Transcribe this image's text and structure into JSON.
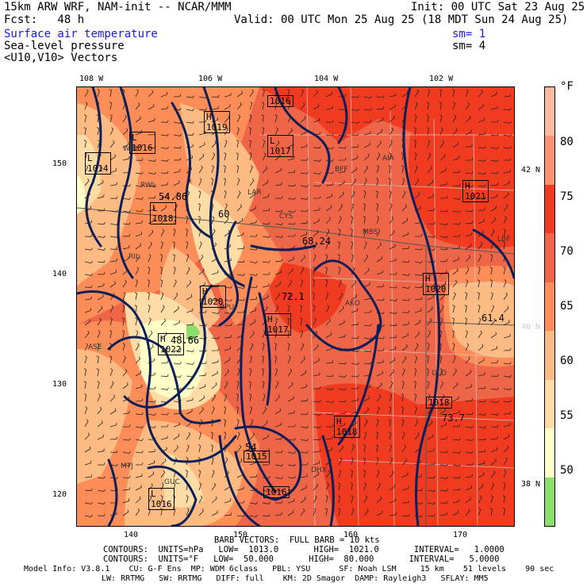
{
  "header": {
    "line1_left": "15km ARW WRF, NAM-init -- NCAR/MMM",
    "line1_right": "Init: 00 UTC Sat 23 Aug 25",
    "line2_left": "Fcst:   48 h",
    "line2_right": "Valid: 00 UTC Mon 25 Aug 25 (18 MDT Sun 24 Aug 25)",
    "field1": "Surface air temperature",
    "field1_sm": "sm= 1",
    "field2": "Sea-level pressure",
    "field2_sm": "sm= 4",
    "field3": "<U10,V10> Vectors"
  },
  "map": {
    "top_lon_labels": [
      "108 W",
      "106 W",
      "104 W",
      "102 W"
    ],
    "left_y_labels": [
      "150",
      "140",
      "130",
      "120"
    ],
    "bottom_x_labels": [
      "140",
      "150",
      "160",
      "170"
    ],
    "right_lat_labels": [
      "42 N",
      "40 N",
      "38 N"
    ],
    "pressure_highs": [
      {
        "letter": "H",
        "value": "1019"
      },
      {
        "letter": "H",
        "value": "1020"
      },
      {
        "letter": "H",
        "value": "1022"
      },
      {
        "letter": "H",
        "value": "1017"
      },
      {
        "letter": "H",
        "value": "1018"
      },
      {
        "letter": "H",
        "value": "1021"
      },
      {
        "letter": "H",
        "value": "1020"
      }
    ],
    "pressure_lows": [
      {
        "letter": "L",
        "value": "1016"
      },
      {
        "letter": "L",
        "value": "1014"
      },
      {
        "letter": "L",
        "value": "1018"
      },
      {
        "letter": "L",
        "value": "1016"
      },
      {
        "letter": "L",
        "value": "1017"
      }
    ],
    "other_boxes": [
      "1016",
      "1015",
      "1016",
      "1018"
    ],
    "temp_labels": [
      "54.86",
      "60",
      "68.24",
      "72.1",
      "48.66",
      "61.4",
      "73.7",
      "54"
    ],
    "station_ids": [
      "WRL",
      "RWL",
      "LAR",
      "CYS",
      "BFF",
      "AIA",
      "LBF",
      "AKO",
      "BPU",
      "GLD",
      "DHX",
      "RIL",
      "ASE",
      "MTJ",
      "GUC",
      "MBS"
    ],
    "colors": {
      "t50": "#ffffc8",
      "t55": "#fedca5",
      "t60": "#fdbb84",
      "t65": "#fc8d59",
      "t70": "#ef6548",
      "t75": "#f03b20",
      "t80": "#fc9272",
      "t85": "#fcbba1",
      "lt45": "#8be06b",
      "isobar": "#0b1f5c"
    }
  },
  "legend": {
    "unit": "°F",
    "labels": [
      "80",
      "75",
      "70",
      "65",
      "60",
      "55",
      "50"
    ]
  },
  "footer": {
    "barb": "BARB VECTORS:  FULL BARB = 10 kts",
    "contours1": "CONTOURS:  UNITS=hPa   LOW=  1013.0       HIGH=  1021.0       INTERVAL=   1.0000",
    "contours2": "CONTOURS:  UNITS=°F   LOW=  50.000       HIGH=  80.000       INTERVAL=   5.0000",
    "model1": "Model Info: V3.8.1    CU: G-F Ens  MP: WDM 6class   PBL: YSU      SF: Noah LSM     15 km    51 levels    90 sec",
    "model2": "LW: RRTMG   SW: RRTMG   DIFF: full    KM: 2D Smagor  DAMP: Rayleigh3   SFLAY: MM5"
  }
}
